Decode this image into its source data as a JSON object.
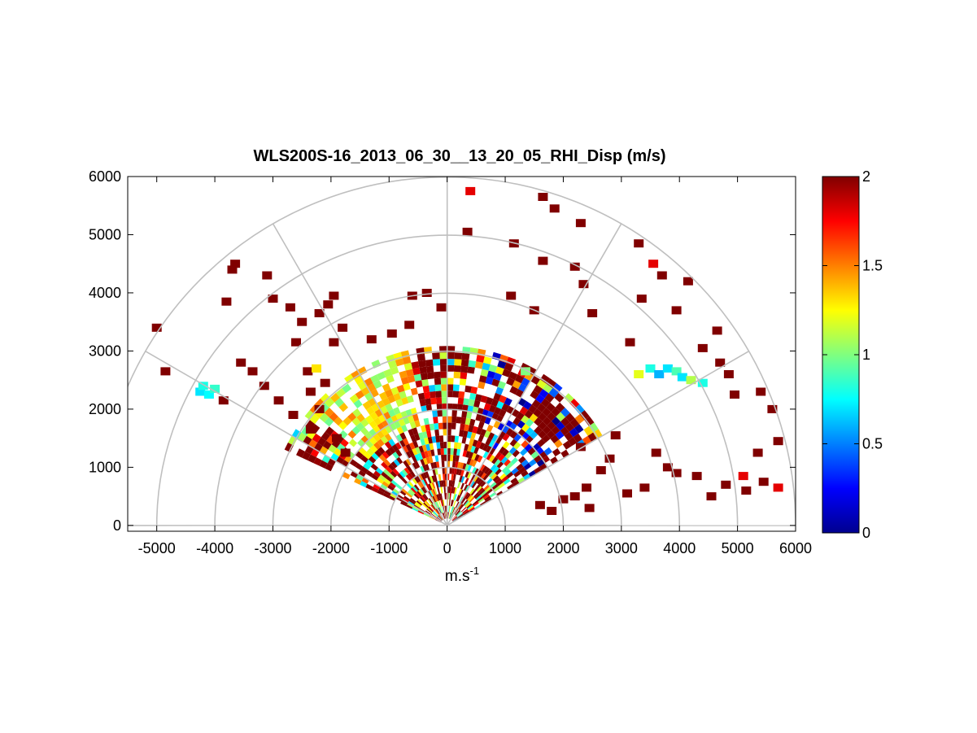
{
  "chart_data": {
    "type": "heatmap",
    "title": "WLS200S-16_2013_06_30__13_20_05_RHI_Disp (m/s)",
    "xlabel": "m.s",
    "xlabel_superscript": "-1",
    "xlim": [
      -5500,
      6000
    ],
    "ylim": [
      -100,
      6000
    ],
    "x_ticks": [
      -5000,
      -4000,
      -3000,
      -2000,
      -1000,
      0,
      1000,
      2000,
      3000,
      4000,
      5000,
      6000
    ],
    "y_ticks": [
      0,
      1000,
      2000,
      3000,
      4000,
      5000,
      6000
    ],
    "polar_grid": {
      "range_rings": [
        1000,
        2000,
        3000,
        4000,
        5000,
        6000
      ],
      "radial_angles_deg": [
        0,
        30,
        60,
        90,
        120,
        150,
        180
      ]
    },
    "colorbar": {
      "colormap": "jet",
      "range": [
        0,
        2
      ],
      "ticks": [
        "0",
        "0.5",
        "1",
        "1.5",
        "2"
      ],
      "ticks_values": [
        0,
        0.5,
        1,
        1.5,
        2
      ]
    },
    "dense_region": {
      "azimuth_range_deg": [
        30,
        155
      ],
      "range_max": 3000
    },
    "cells": [
      [
        -5000,
        3400,
        2
      ],
      [
        -4850,
        2650,
        2
      ],
      [
        -4250,
        2300,
        0.7
      ],
      [
        -4200,
        2400,
        0.8
      ],
      [
        -4100,
        2250,
        0.75
      ],
      [
        -4000,
        2350,
        0.85
      ],
      [
        -3850,
        2150,
        2
      ],
      [
        -3650,
        4500,
        2
      ],
      [
        -3700,
        4400,
        2
      ],
      [
        -3800,
        3850,
        2
      ],
      [
        -3550,
        2800,
        2
      ],
      [
        -3350,
        2650,
        2
      ],
      [
        -3100,
        4300,
        2
      ],
      [
        -3000,
        3900,
        2
      ],
      [
        -3150,
        2400,
        2
      ],
      [
        -2900,
        2150,
        2
      ],
      [
        -2700,
        3750,
        2
      ],
      [
        -2600,
        3150,
        2
      ],
      [
        -2650,
        1900,
        2
      ],
      [
        -2500,
        3500,
        2
      ],
      [
        -2400,
        2650,
        2
      ],
      [
        -2250,
        2700,
        1.3
      ],
      [
        -2100,
        2450,
        2
      ],
      [
        -2350,
        2300,
        2
      ],
      [
        -2200,
        2000,
        2
      ],
      [
        -2350,
        1650,
        2
      ],
      [
        -1950,
        3950,
        2
      ],
      [
        -2050,
        3800,
        2
      ],
      [
        -2200,
        3650,
        2
      ],
      [
        -1800,
        3400,
        2
      ],
      [
        -1950,
        3150,
        2
      ],
      [
        -1900,
        1500,
        2
      ],
      [
        -1750,
        1250,
        2
      ],
      [
        -1300,
        3200,
        2
      ],
      [
        -950,
        3300,
        2
      ],
      [
        -650,
        3450,
        2
      ],
      [
        -600,
        3950,
        2
      ],
      [
        -350,
        4000,
        2
      ],
      [
        -100,
        3750,
        2
      ],
      [
        1350,
        2650,
        1
      ],
      [
        400,
        5750,
        1.8
      ],
      [
        350,
        5050,
        2
      ],
      [
        1650,
        5650,
        2
      ],
      [
        1850,
        5450,
        2
      ],
      [
        2300,
        5200,
        2
      ],
      [
        1150,
        4850,
        2
      ],
      [
        1650,
        4550,
        2
      ],
      [
        2200,
        4450,
        2
      ],
      [
        2350,
        4150,
        2
      ],
      [
        3300,
        4850,
        2
      ],
      [
        3550,
        4500,
        1.8
      ],
      [
        3700,
        4300,
        2
      ],
      [
        4150,
        4200,
        2
      ],
      [
        3350,
        3900,
        2
      ],
      [
        3950,
        3700,
        2
      ],
      [
        4650,
        3350,
        2
      ],
      [
        4400,
        3050,
        2
      ],
      [
        1100,
        3950,
        2
      ],
      [
        1500,
        3700,
        2
      ],
      [
        2500,
        3650,
        2
      ],
      [
        3150,
        3150,
        2
      ],
      [
        3500,
        2700,
        0.8
      ],
      [
        3650,
        2600,
        0.6
      ],
      [
        3800,
        2700,
        0.7
      ],
      [
        3950,
        2650,
        0.9
      ],
      [
        4050,
        2550,
        0.7
      ],
      [
        4200,
        2500,
        1.1
      ],
      [
        4400,
        2450,
        0.8
      ],
      [
        3300,
        2600,
        1.2
      ],
      [
        4700,
        2800,
        2
      ],
      [
        4850,
        2600,
        2
      ],
      [
        4950,
        2250,
        2
      ],
      [
        5400,
        2300,
        2
      ],
      [
        5600,
        2000,
        2
      ],
      [
        5700,
        1450,
        2
      ],
      [
        5350,
        1250,
        2
      ],
      [
        5100,
        850,
        1.8
      ],
      [
        5150,
        600,
        2
      ],
      [
        5450,
        750,
        2
      ],
      [
        5700,
        650,
        1.8
      ],
      [
        4800,
        700,
        2
      ],
      [
        4550,
        500,
        2
      ],
      [
        4300,
        850,
        2
      ],
      [
        3950,
        900,
        2
      ],
      [
        3400,
        650,
        2
      ],
      [
        3100,
        550,
        2
      ],
      [
        2800,
        1150,
        2
      ],
      [
        2650,
        950,
        2
      ],
      [
        2400,
        650,
        2
      ],
      [
        2200,
        500,
        2
      ],
      [
        2000,
        450,
        2
      ],
      [
        1600,
        350,
        2
      ],
      [
        1800,
        250,
        2
      ],
      [
        2450,
        300,
        2
      ],
      [
        3600,
        1250,
        2
      ],
      [
        3800,
        1000,
        2
      ],
      [
        2900,
        1550,
        2
      ],
      [
        2300,
        1350,
        2
      ]
    ]
  }
}
